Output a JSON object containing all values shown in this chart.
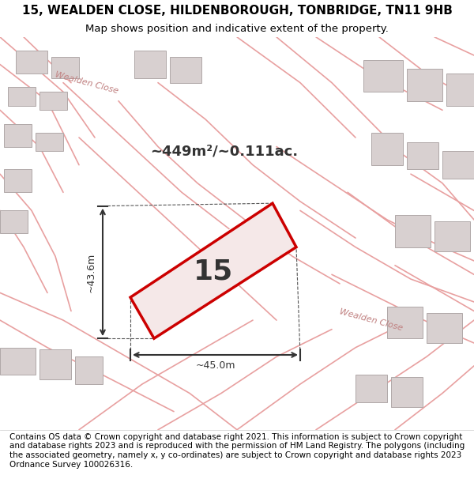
{
  "title_line1": "15, WEALDEN CLOSE, HILDENBOROUGH, TONBRIDGE, TN11 9HB",
  "title_line2": "Map shows position and indicative extent of the property.",
  "area_text": "~449m²/~0.111ac.",
  "plot_number": "15",
  "dim_width": "~45.0m",
  "dim_height": "~43.6m",
  "footer_text": "Contains OS data © Crown copyright and database right 2021. This information is subject to Crown copyright and database rights 2023 and is reproduced with the permission of HM Land Registry. The polygons (including the associated geometry, namely x, y co-ordinates) are subject to Crown copyright and database rights 2023 Ordnance Survey 100026316.",
  "bg_color": "#f5f0f0",
  "map_bg": "#f0eded",
  "plot_fill": "#f5e8e8",
  "plot_edge": "#cc0000",
  "road_color": "#e8a0a0",
  "building_color": "#d8d0d0",
  "building_edge": "#b0a8a8",
  "label_color": "#c08080",
  "title_fontsize": 11,
  "subtitle_fontsize": 9.5,
  "footer_fontsize": 7.5
}
